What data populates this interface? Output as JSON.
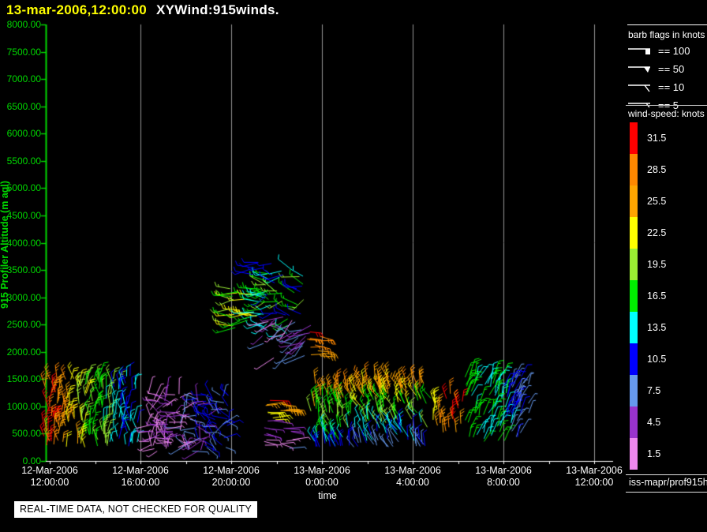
{
  "title": {
    "timestamp": "13-mar-2006,12:00:00",
    "plot_name": "XYWind:915winds."
  },
  "y_axis": {
    "title": "915 Profiler Altitude (m agl)",
    "tick_labels": [
      "8000.00",
      "7500.00",
      "7000.00",
      "6500.00",
      "6000.00",
      "5500.00",
      "5000.00",
      "4500.00",
      "4000.00",
      "3500.00",
      "3000.00",
      "2500.00",
      "2000.00",
      "1500.00",
      "1000.00",
      "500.00",
      "0.00"
    ],
    "color": "#00d800"
  },
  "x_axis": {
    "title": "time",
    "tick_labels": [
      {
        "date": "12-Mar-2006",
        "time": "12:00:00"
      },
      {
        "date": "12-Mar-2006",
        "time": "16:00:00"
      },
      {
        "date": "12-Mar-2006",
        "time": "20:00:00"
      },
      {
        "date": "13-Mar-2006",
        "time": "0:00:00"
      },
      {
        "date": "13-Mar-2006",
        "time": "4:00:00"
      },
      {
        "date": "13-Mar-2006",
        "time": "8:00:00"
      },
      {
        "date": "13-Mar-2006",
        "time": "12:00:00"
      }
    ],
    "color": "#ffffff"
  },
  "legend": {
    "barb_heading": "barb flags in knots",
    "barb_items": [
      {
        "flag": "square-pennant",
        "label": "== 100"
      },
      {
        "flag": "triangle-pennant",
        "label": "== 50"
      },
      {
        "flag": "full-tick",
        "label": "== 10"
      },
      {
        "flag": "half-tick",
        "label": "== 5"
      }
    ],
    "speed_heading": "wind-speed: knots",
    "colorbar": [
      {
        "value": "31.5",
        "color": "#ff0000"
      },
      {
        "value": "28.5",
        "color": "#ff8800"
      },
      {
        "value": "25.5",
        "color": "#ffa500"
      },
      {
        "value": "22.5",
        "color": "#ffff00"
      },
      {
        "value": "19.5",
        "color": "#9aee33"
      },
      {
        "value": "16.5",
        "color": "#00ee00"
      },
      {
        "value": "13.5",
        "color": "#00ffff"
      },
      {
        "value": "10.5",
        "color": "#0000ff"
      },
      {
        "value": "7.5",
        "color": "#6699ee"
      },
      {
        "value": "4.5",
        "color": "#9933cc"
      },
      {
        "value": "1.5",
        "color": "#ee88ee"
      }
    ]
  },
  "footer": {
    "source": "iss-mapr/prof915h"
  },
  "banner": {
    "text": "REAL-TIME DATA, NOT CHECKED FOR QUALITY"
  },
  "colors": {
    "background": "#000000",
    "y_axis": "#00d800",
    "x_axis": "#ffffff",
    "gridline": "#969696",
    "title_date": "#ffff00"
  },
  "chart_data": {
    "type": "wind-barb-time-height",
    "title": "XYWind:915winds.",
    "xlabel": "time",
    "ylabel": "915 Profiler Altitude (m agl)",
    "x_range_hours_since_12mar_0000": [
      12,
      36
    ],
    "x_major_tick_hours": [
      12,
      16,
      20,
      24,
      28,
      32,
      36
    ],
    "x_minor_tick_step_hours": 2,
    "y_range_m": [
      0,
      8000
    ],
    "y_tick_step_m": 500,
    "grid": "vertical-only",
    "speed_colors": {
      "1.5": "#ee88ee",
      "4.5": "#9933cc",
      "7.5": "#6699ee",
      "10.5": "#0000ff",
      "13.5": "#00ffff",
      "16.5": "#00ee00",
      "19.5": "#9aee33",
      "22.5": "#ffff00",
      "25.5": "#ffa500",
      "28.5": "#ff8800",
      "31.5": "#ff0000"
    },
    "clusters": [
      {
        "id": "surface-afternoon-orange-to-blue",
        "t": [
          11.75,
          15.9
        ],
        "alt": [
          250,
          1560
        ],
        "count": 190,
        "angle": [
          -25,
          20
        ],
        "len": [
          12,
          19
        ],
        "axis": "t",
        "profile": [
          31.5,
          28.5,
          25.5,
          22.5,
          19.5,
          16.5,
          19.5,
          13.5,
          10.5,
          13.5
        ],
        "jitter": 1
      },
      {
        "id": "surface-evening-violet",
        "t": [
          16.25,
          19.9
        ],
        "alt": [
          170,
          1240
        ],
        "count": 155,
        "angle": [
          -130,
          130
        ],
        "len": [
          12,
          22
        ],
        "axis": "t",
        "profile": [
          1.5,
          1.5,
          4.5,
          1.5,
          7.5,
          4.5,
          10.5,
          7.5,
          10.5
        ],
        "jitter": 1
      },
      {
        "id": "midlevel-left-wing-green",
        "t": [
          19.75,
          21.6
        ],
        "alt": [
          2400,
          3250
        ],
        "count": 40,
        "angle": [
          -115,
          -70
        ],
        "len": [
          16,
          26
        ],
        "axis": "t",
        "profile": [
          19.5,
          16.5,
          22.5,
          16.5,
          13.5
        ],
        "jitter": 1
      },
      {
        "id": "midlevel-core-mixed",
        "t": [
          21.3,
          23.2
        ],
        "alt": [
          2100,
          3530
        ],
        "count": 55,
        "angle": [
          -140,
          -40
        ],
        "len": [
          14,
          24
        ],
        "axis": "alt",
        "profile": [
          7.5,
          4.5,
          13.5,
          16.5,
          10.5,
          16.5,
          19.5,
          13.5
        ],
        "jitter": 2
      },
      {
        "id": "midlevel-purple-strands",
        "t": [
          21.6,
          23.7
        ],
        "alt": [
          1800,
          2750
        ],
        "count": 22,
        "angle": [
          -150,
          -100
        ],
        "len": [
          20,
          30
        ],
        "axis": "t",
        "profile": [
          4.5,
          1.5,
          7.5,
          4.5
        ],
        "jitter": 1
      },
      {
        "id": "midlevel-red-jet",
        "t": [
          23.3,
          24.0
        ],
        "alt": [
          1900,
          2500
        ],
        "count": 12,
        "angle": [
          85,
          115
        ],
        "len": [
          14,
          20
        ],
        "axis": "alt",
        "profile": [
          25.5,
          28.5,
          31.5
        ],
        "jitter": 0
      },
      {
        "id": "midlevel-top-darkblue",
        "t": [
          20.9,
          22.5
        ],
        "alt": [
          3380,
          3650
        ],
        "count": 8,
        "angle": [
          -110,
          -75
        ],
        "len": [
          16,
          24
        ],
        "axis": "t",
        "profile": [
          10.5
        ],
        "jitter": 0
      },
      {
        "id": "surface-stack-2100",
        "t": [
          21.4,
          22.75
        ],
        "alt": [
          200,
          1140
        ],
        "count": 34,
        "angle": [
          80,
          110
        ],
        "len": [
          14,
          24
        ],
        "axis": "alt",
        "profile": [
          7.5,
          1.5,
          4.5,
          4.5,
          22.5,
          25.5,
          31.5
        ],
        "jitter": 0
      },
      {
        "id": "surface-midnight",
        "t": [
          23.5,
          25.3
        ],
        "alt": [
          250,
          1460
        ],
        "count": 85,
        "angle": [
          -35,
          5
        ],
        "len": [
          12,
          19
        ],
        "axis": "alt",
        "profile": [
          10.5,
          13.5,
          16.5,
          19.5,
          16.5,
          25.5,
          28.5
        ],
        "jitter": 1
      },
      {
        "id": "surface-early-morning",
        "t": [
          25.4,
          28.8
        ],
        "alt": [
          250,
          1550
        ],
        "count": 165,
        "angle": [
          -45,
          0
        ],
        "len": [
          12,
          20
        ],
        "axis": "alt",
        "profile": [
          7.5,
          10.5,
          13.5,
          19.5,
          16.5,
          22.5,
          25.5,
          28.5
        ],
        "jitter": 1
      },
      {
        "id": "surface-dawn-orange",
        "t": [
          28.9,
          30.2
        ],
        "alt": [
          520,
          1240
        ],
        "count": 26,
        "angle": [
          -20,
          10
        ],
        "len": [
          13,
          18
        ],
        "axis": "t",
        "profile": [
          22.5,
          25.5,
          28.5,
          31.5,
          25.5
        ],
        "jitter": 1
      },
      {
        "id": "surface-morning-green",
        "t": [
          30.3,
          32.8
        ],
        "alt": [
          350,
          1600
        ],
        "count": 100,
        "angle": [
          5,
          40
        ],
        "len": [
          14,
          21
        ],
        "axis": "t",
        "profile": [
          16.5,
          16.5,
          13.5,
          16.5,
          13.5,
          10.5,
          7.5
        ],
        "jitter": 1
      },
      {
        "id": "morning-blue-flank",
        "t": [
          32.0,
          33.2
        ],
        "alt": [
          850,
          1500
        ],
        "count": 14,
        "angle": [
          10,
          35
        ],
        "len": [
          13,
          18
        ],
        "axis": "t",
        "profile": [
          10.5,
          7.5
        ],
        "jitter": 0
      }
    ]
  }
}
